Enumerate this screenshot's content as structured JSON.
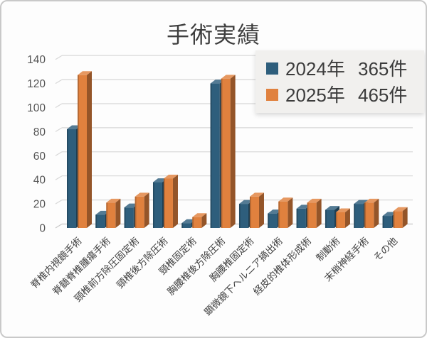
{
  "chart_data": {
    "type": "bar",
    "style": "3d-clustered-columns",
    "title": "手術実績",
    "categories": [
      "脊椎内視鏡手術",
      "脊髄脊椎腫瘍手術",
      "頸椎前方除圧固定術",
      "頸椎後方除圧術",
      "頸椎固定術",
      "胸腰椎後方除圧術",
      "胸腰椎固定術",
      "顕微鏡下ヘルニア摘出術",
      "経皮的椎体形成術",
      "制動術",
      "末梢神経手術",
      "その他"
    ],
    "series": [
      {
        "name": "2024年",
        "total_label": "365件",
        "color": "#2E5E7C",
        "values": [
          82,
          11,
          17,
          38,
          4,
          120,
          20,
          12,
          16,
          15,
          20,
          10
        ]
      },
      {
        "name": "2025年",
        "total_label": "465件",
        "color": "#E0813E",
        "values": [
          127,
          21,
          26,
          41,
          9,
          124,
          26,
          22,
          21,
          13,
          21,
          14
        ]
      }
    ],
    "ylim": [
      0,
      140
    ],
    "ytick_step": 20,
    "y_ticks": [
      "0",
      "20",
      "40",
      "60",
      "80",
      "100",
      "120",
      "140"
    ],
    "grid": true,
    "legend_position": "top-right",
    "colors": {
      "gridline": "#D7D7D7",
      "baseline": "#C8C8C8",
      "axis_text": "#555555",
      "category_text": "#3F3F3F",
      "title_text": "#3E3E3E",
      "legend_bg": "#F1F0EE"
    }
  }
}
